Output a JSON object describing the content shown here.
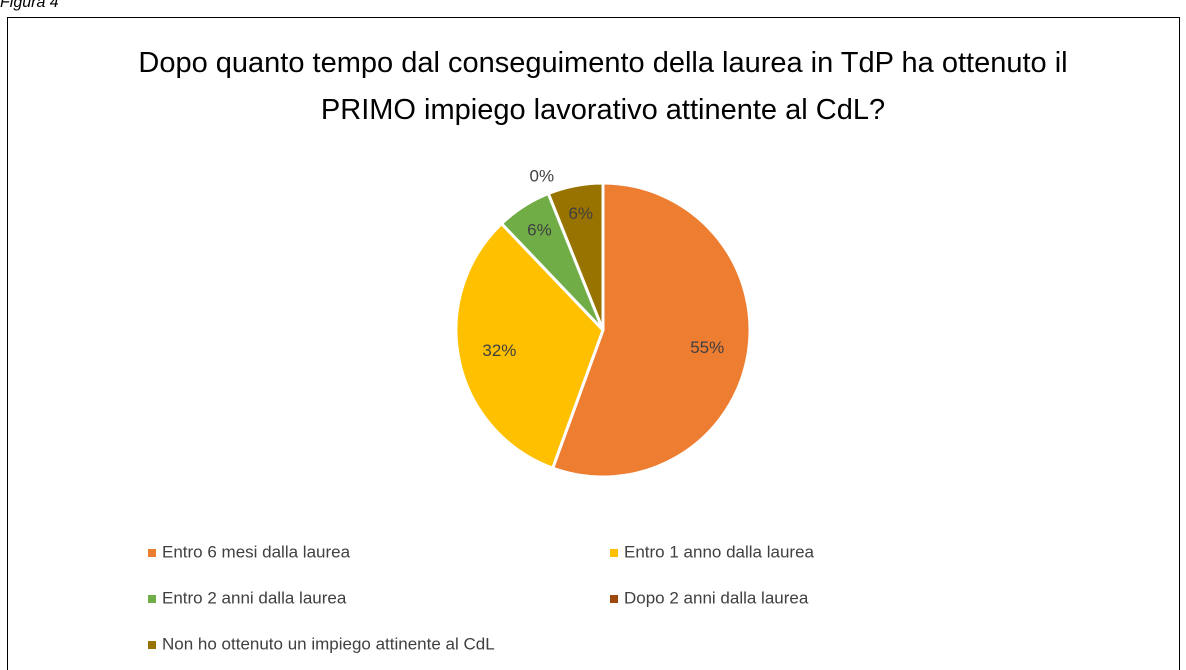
{
  "caption": "Figura 4",
  "chart_data": {
    "type": "pie",
    "title": "Dopo quanto tempo dal conseguimento della laurea in TdP ha ottenuto il PRIMO impiego lavorativo attinente al CdL?",
    "categories": [
      "Entro 6 mesi dalla laurea",
      "Entro 1 anno dalla laurea",
      "Entro 2 anni dalla laurea",
      "Dopo 2 anni dalla laurea",
      "Non ho ottenuto un impiego attinente al CdL"
    ],
    "values": [
      55,
      32,
      6,
      0,
      6
    ],
    "value_labels": [
      "55%",
      "32%",
      "6%",
      "0%",
      "6%"
    ],
    "colors": [
      "#ED7D31",
      "#FFC000",
      "#70AD47",
      "#9E480E",
      "#997300"
    ],
    "legend": "bottom"
  }
}
